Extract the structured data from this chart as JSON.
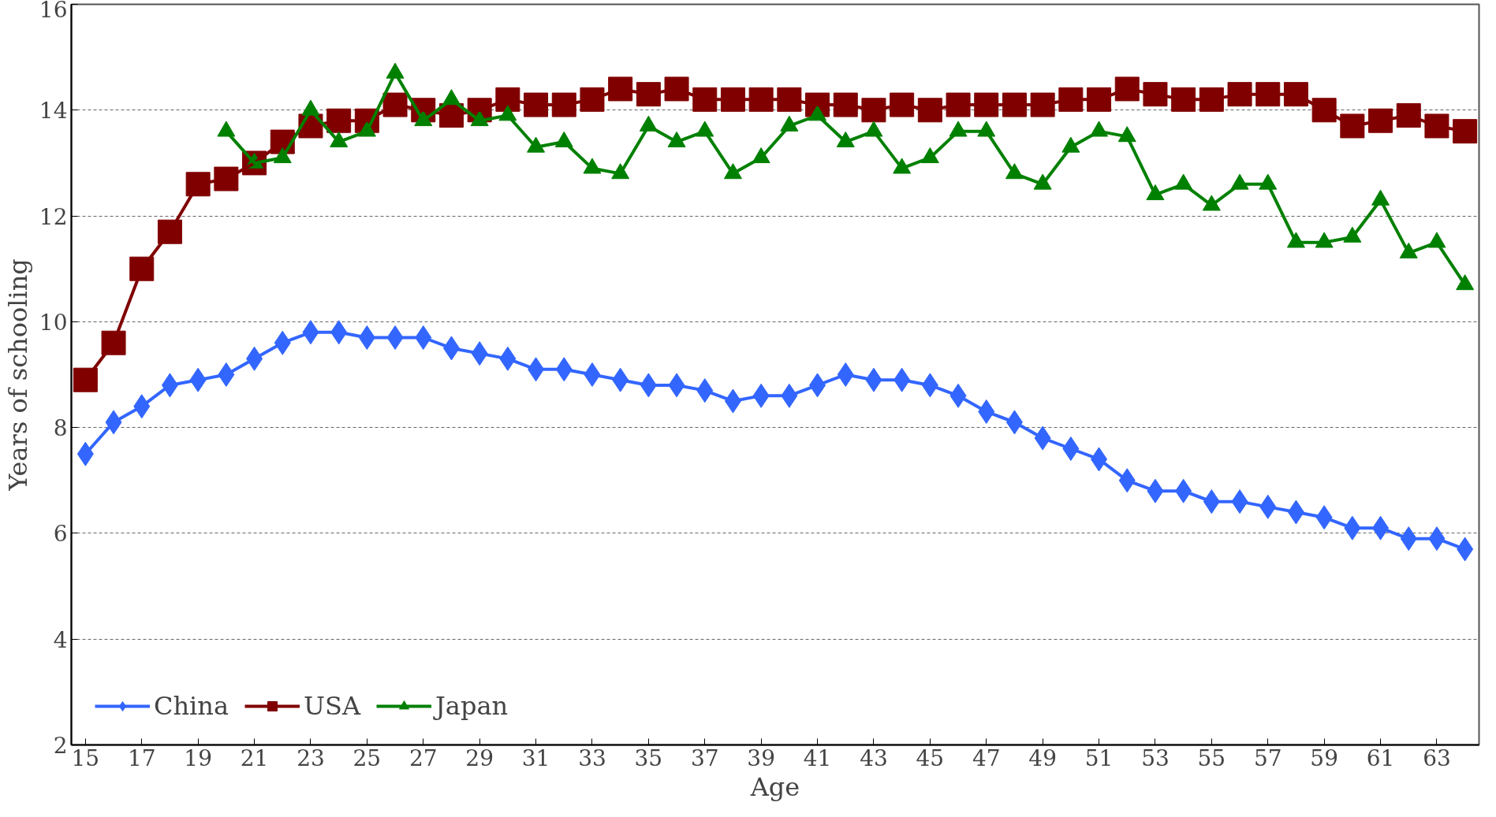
{
  "chart_data": {
    "type": "line",
    "xlabel": "Age",
    "ylabel": "Years of schooling",
    "x": [
      15,
      16,
      17,
      18,
      19,
      20,
      21,
      22,
      23,
      24,
      25,
      26,
      27,
      28,
      29,
      30,
      31,
      32,
      33,
      34,
      35,
      36,
      37,
      38,
      39,
      40,
      41,
      42,
      43,
      44,
      45,
      46,
      47,
      48,
      49,
      50,
      51,
      52,
      53,
      54,
      55,
      56,
      57,
      58,
      59,
      60,
      61,
      62,
      63,
      64
    ],
    "xlim": [
      14.5,
      64.5
    ],
    "xticks": [
      15,
      17,
      19,
      21,
      23,
      25,
      27,
      29,
      31,
      33,
      35,
      37,
      39,
      41,
      43,
      45,
      47,
      49,
      51,
      53,
      55,
      57,
      59,
      61,
      63
    ],
    "ylim": [
      2,
      16
    ],
    "yticks": [
      2,
      4,
      6,
      8,
      10,
      12,
      14,
      16
    ],
    "grid": "y",
    "legend": "bottom left",
    "line_style": "solid",
    "series": [
      {
        "name": "China",
        "color": "#3366ff",
        "marker": "diamond",
        "values": [
          7.5,
          8.1,
          8.4,
          8.8,
          8.9,
          9.0,
          9.3,
          9.6,
          9.8,
          9.8,
          9.7,
          9.7,
          9.7,
          9.5,
          9.4,
          9.3,
          9.1,
          9.1,
          9.0,
          8.9,
          8.8,
          8.8,
          8.7,
          8.5,
          8.6,
          8.6,
          8.8,
          9.0,
          8.9,
          8.9,
          8.8,
          8.6,
          8.3,
          8.1,
          7.8,
          7.6,
          7.4,
          7.0,
          6.8,
          6.8,
          6.6,
          6.6,
          6.5,
          6.4,
          6.3,
          6.1,
          6.1,
          5.9,
          5.9,
          5.7
        ]
      },
      {
        "name": "USA",
        "color": "#800000",
        "marker": "square",
        "values": [
          8.9,
          9.6,
          11.0,
          11.7,
          12.6,
          12.7,
          13.0,
          13.4,
          13.7,
          13.8,
          13.8,
          14.1,
          14.0,
          13.9,
          14.0,
          14.2,
          14.1,
          14.1,
          14.2,
          14.4,
          14.3,
          14.4,
          14.2,
          14.2,
          14.2,
          14.2,
          14.1,
          14.1,
          14.0,
          14.1,
          14.0,
          14.1,
          14.1,
          14.1,
          14.1,
          14.2,
          14.2,
          14.4,
          14.3,
          14.2,
          14.2,
          14.3,
          14.3,
          14.3,
          14.0,
          13.7,
          13.8,
          13.9,
          13.7,
          13.6
        ]
      },
      {
        "name": "Japan",
        "color": "#008000",
        "marker": "triangle",
        "x": [
          20,
          21,
          22,
          23,
          24,
          25,
          26,
          27,
          28,
          29,
          30,
          31,
          32,
          33,
          34,
          35,
          36,
          37,
          38,
          39,
          40,
          41,
          42,
          43,
          44,
          45,
          46,
          47,
          48,
          49,
          50,
          51,
          52,
          53,
          54,
          55,
          56,
          57,
          58,
          59,
          60,
          61,
          62,
          63,
          64
        ],
        "values": [
          13.6,
          13.0,
          13.1,
          14.0,
          13.4,
          13.6,
          14.7,
          13.8,
          14.2,
          13.8,
          13.9,
          13.3,
          13.4,
          12.9,
          12.8,
          13.7,
          13.4,
          13.6,
          12.8,
          13.1,
          13.7,
          13.9,
          13.4,
          13.6,
          12.9,
          13.1,
          13.6,
          13.6,
          12.8,
          12.6,
          13.3,
          13.6,
          13.5,
          12.4,
          12.6,
          12.2,
          12.6,
          12.6,
          11.5,
          11.5,
          11.6,
          12.3,
          11.3,
          11.5,
          10.7
        ]
      }
    ]
  }
}
